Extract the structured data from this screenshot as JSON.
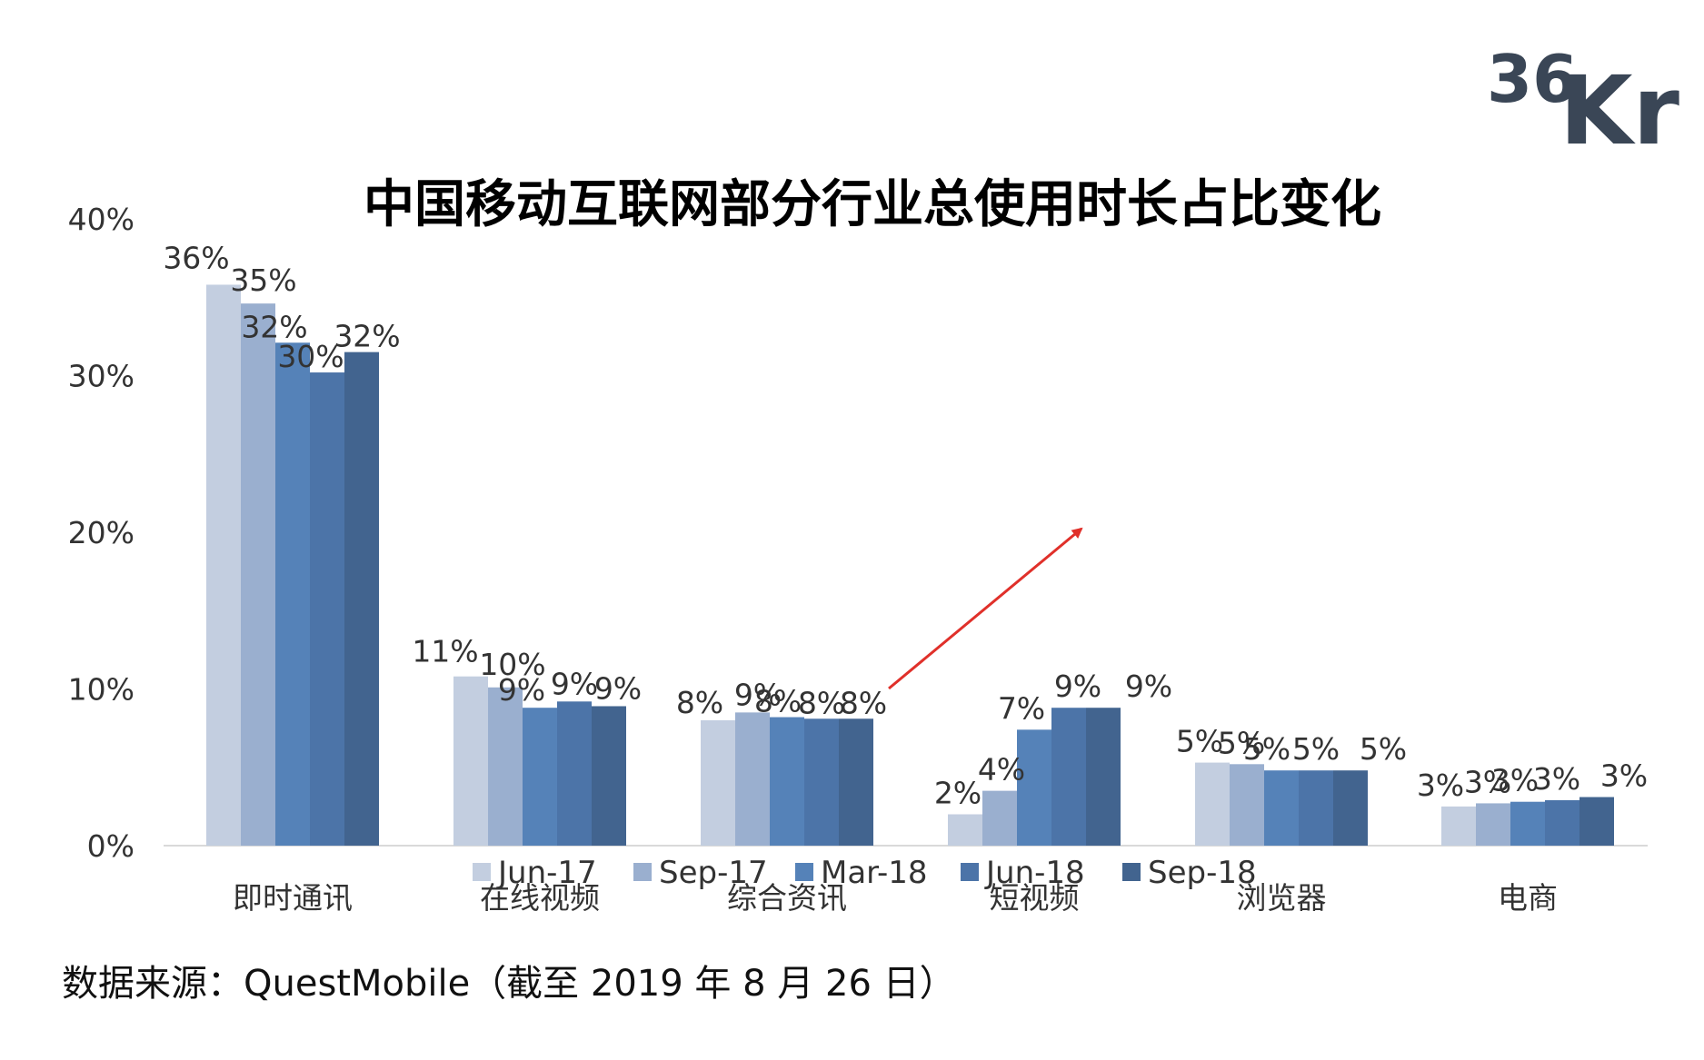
{
  "logo": {
    "text": "36Kr",
    "color": "#3a4656"
  },
  "annotation": {
    "arrow_color": "#e0302a"
  },
  "source_note": "数据来源：QuestMobile（截至 2019 年 8 月 26 日）",
  "chart_data": {
    "type": "bar",
    "title": "中国移动互联网部分行业总使用时长占比变化",
    "xlabel": "",
    "ylabel": "",
    "ylim": [
      0,
      40
    ],
    "yticks": [
      {
        "value": 0,
        "label": "0%"
      },
      {
        "value": 10,
        "label": "10%"
      },
      {
        "value": 20,
        "label": "20%"
      },
      {
        "value": 30,
        "label": "30%"
      },
      {
        "value": 40,
        "label": "40%"
      }
    ],
    "grid": false,
    "legend_position": "bottom",
    "categories": [
      "即时通讯",
      "在线视频",
      "综合资讯",
      "短视频",
      "浏览器",
      "电商"
    ],
    "series": [
      {
        "name": "Jun-17",
        "color": "#c3cee0",
        "values": [
          35.8,
          10.8,
          8.0,
          2.0,
          5.3,
          2.5
        ],
        "labels": [
          "36%",
          "11%",
          "8%",
          "2%",
          "5%",
          "3%"
        ]
      },
      {
        "name": "Sep-17",
        "color": "#9aafcf",
        "values": [
          34.6,
          10.1,
          8.5,
          3.5,
          5.2,
          2.7
        ],
        "labels": [
          "35%",
          "10%",
          "9%",
          "4%",
          "5%",
          "3%"
        ]
      },
      {
        "name": "Mar-18",
        "color": "#5582b8",
        "values": [
          32.1,
          8.8,
          8.2,
          7.4,
          4.8,
          2.8
        ],
        "labels": [
          "32%",
          "9%",
          "8%",
          "7%",
          "5%",
          "3%"
        ]
      },
      {
        "name": "Jun-18",
        "color": "#4c74a8",
        "values": [
          30.2,
          9.2,
          8.1,
          8.8,
          4.8,
          2.9
        ],
        "labels": [
          "30%",
          "9%",
          "8%",
          "9%",
          "5%",
          "3%"
        ]
      },
      {
        "name": "Sep-18",
        "color": "#42648f",
        "values": [
          31.5,
          8.9,
          8.1,
          8.8,
          4.8,
          3.1
        ],
        "labels": [
          "32%",
          "9%",
          "8%",
          "9%",
          "5%",
          "3%"
        ]
      }
    ]
  }
}
